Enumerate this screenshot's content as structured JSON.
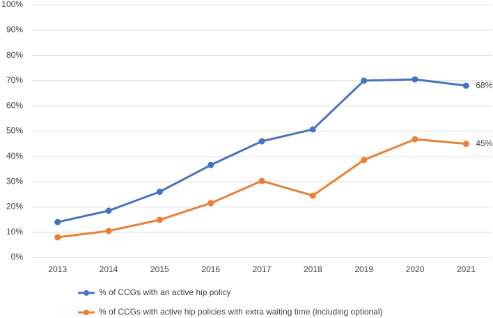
{
  "chart_data": {
    "type": "line",
    "categories": [
      "2013",
      "2014",
      "2015",
      "2016",
      "2017",
      "2018",
      "2019",
      "2020",
      "2021"
    ],
    "series": [
      {
        "name": "% of CCGs with an active hip policy",
        "color": "#4472c4",
        "values": [
          14,
          18.5,
          26,
          36.6,
          46,
          50.7,
          70,
          70.5,
          68
        ],
        "value_labels": [
          null,
          null,
          null,
          null,
          null,
          null,
          null,
          null,
          "68%"
        ]
      },
      {
        "name": "% of CCGs with active hip policies with extra waiting time (including optional)",
        "color": "#ed7d31",
        "values": [
          8,
          10.5,
          14.9,
          21.5,
          30.3,
          24.5,
          38.6,
          46.8,
          45
        ],
        "value_labels": [
          null,
          null,
          null,
          null,
          null,
          null,
          null,
          null,
          "45%"
        ]
      }
    ],
    "ylim": [
      0,
      100
    ],
    "yticks": [
      {
        "value": 0,
        "label": "0%"
      },
      {
        "value": 10,
        "label": "10%"
      },
      {
        "value": 20,
        "label": "20%"
      },
      {
        "value": 30,
        "label": "30%"
      },
      {
        "value": 40,
        "label": "40%"
      },
      {
        "value": 50,
        "label": "50%"
      },
      {
        "value": 60,
        "label": "60%"
      },
      {
        "value": 70,
        "label": "70%"
      },
      {
        "value": 80,
        "label": "80%"
      },
      {
        "value": 90,
        "label": "90%"
      },
      {
        "value": 100,
        "label": "100%"
      }
    ],
    "grid": true,
    "legend": "bottom"
  }
}
